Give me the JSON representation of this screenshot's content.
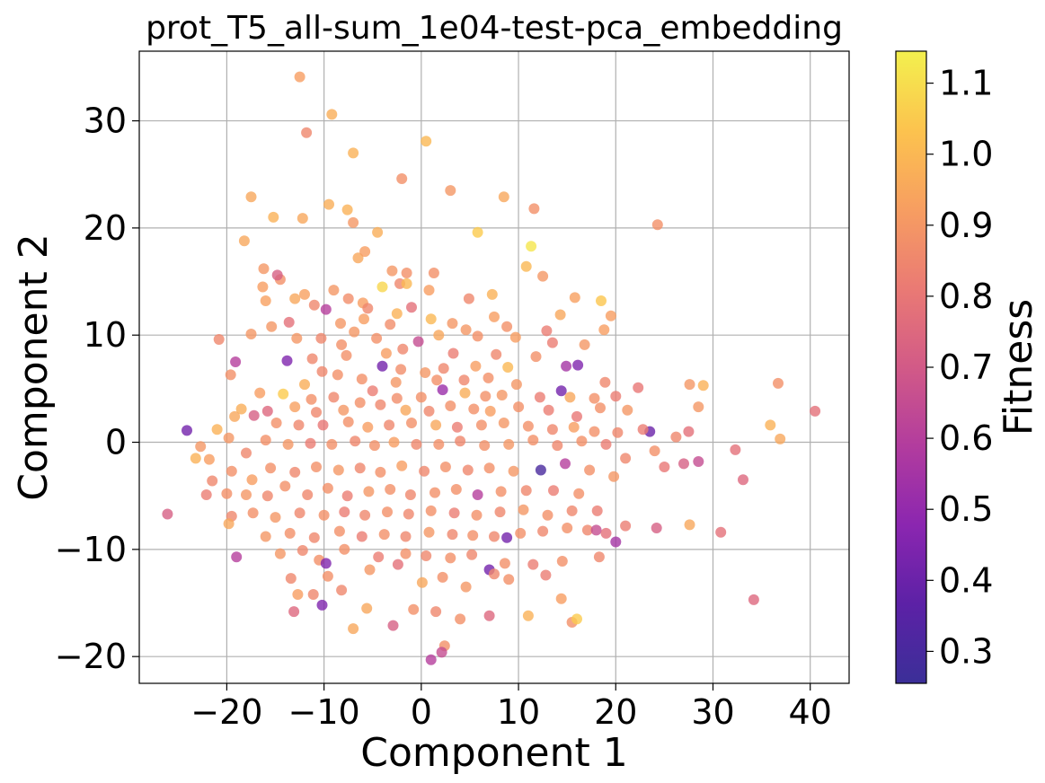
{
  "chart_data": {
    "type": "scatter",
    "title": "prot_T5_all-sum_1e04-test-pca_embedding",
    "xlabel": "Component 1",
    "ylabel": "Component 2",
    "xlim": [
      -29,
      44
    ],
    "ylim": [
      -22.5,
      36.5
    ],
    "xticks": [
      -20,
      -10,
      0,
      10,
      20,
      30,
      40
    ],
    "yticks": [
      -20,
      -10,
      0,
      10,
      20,
      30
    ],
    "xtick_labels": [
      "−20",
      "−10",
      "0",
      "10",
      "20",
      "30",
      "40"
    ],
    "ytick_labels": [
      "−20",
      "−10",
      "0",
      "10",
      "20",
      "30"
    ],
    "grid": true,
    "colorbar": {
      "label": "Fitness",
      "colormap": "plasma",
      "range": [
        0.255,
        1.145
      ],
      "ticks": [
        0.3,
        0.4,
        0.5,
        0.6,
        0.7,
        0.8,
        0.9,
        1.0,
        1.1
      ],
      "tick_labels": [
        "0.3",
        "0.4",
        "0.5",
        "0.6",
        "0.7",
        "0.8",
        "0.9",
        "1.0",
        "1.1"
      ]
    },
    "points": [
      [
        -12.5,
        34.1,
        0.92
      ],
      [
        -9.2,
        30.6,
        0.97
      ],
      [
        -11.8,
        28.9,
        0.85
      ],
      [
        0.5,
        28.1,
        1.0
      ],
      [
        -7.0,
        27.0,
        0.98
      ],
      [
        -2.0,
        24.6,
        0.88
      ],
      [
        3.0,
        23.5,
        0.9
      ],
      [
        -17.5,
        22.9,
        0.95
      ],
      [
        8.5,
        22.9,
        0.95
      ],
      [
        -9.5,
        22.2,
        0.97
      ],
      [
        -7.6,
        21.7,
        0.98
      ],
      [
        11.6,
        21.8,
        0.88
      ],
      [
        -15.2,
        21.0,
        0.98
      ],
      [
        -12.2,
        20.9,
        0.95
      ],
      [
        -7.0,
        20.5,
        0.9
      ],
      [
        5.8,
        19.6,
        1.05
      ],
      [
        24.3,
        20.3,
        0.88
      ],
      [
        -18.2,
        18.8,
        0.95
      ],
      [
        -4.5,
        19.6,
        0.97
      ],
      [
        11.3,
        18.3,
        1.12
      ],
      [
        -6.5,
        17.2,
        0.95
      ],
      [
        -5.8,
        17.8,
        0.92
      ],
      [
        -16.2,
        16.2,
        0.9
      ],
      [
        -14.5,
        15.2,
        0.88
      ],
      [
        -3.0,
        16.0,
        0.9
      ],
      [
        -1.5,
        15.8,
        0.88
      ],
      [
        1.3,
        15.8,
        0.88
      ],
      [
        10.8,
        16.4,
        1.0
      ],
      [
        -14.8,
        15.6,
        0.72
      ],
      [
        12.5,
        15.5,
        0.9
      ],
      [
        -16.3,
        14.5,
        0.92
      ],
      [
        -2.2,
        14.8,
        0.85
      ],
      [
        -4.0,
        14.5,
        1.08
      ],
      [
        -1.5,
        14.8,
        1.0
      ],
      [
        -12.0,
        13.8,
        0.93
      ],
      [
        0.8,
        14.2,
        0.92
      ],
      [
        -13.0,
        13.4,
        0.95
      ],
      [
        -9.0,
        14.2,
        0.9
      ],
      [
        -16.0,
        13.2,
        0.93
      ],
      [
        7.3,
        13.8,
        0.98
      ],
      [
        -6.0,
        13.0,
        0.92
      ],
      [
        -7.5,
        13.4,
        0.87
      ],
      [
        15.8,
        13.5,
        0.93
      ],
      [
        18.5,
        13.2,
        1.04
      ],
      [
        -11.0,
        12.8,
        0.85
      ],
      [
        -5.5,
        12.5,
        0.85
      ],
      [
        -1.0,
        12.6,
        0.78
      ],
      [
        4.9,
        13.4,
        0.85
      ],
      [
        14.3,
        11.9,
        0.95
      ],
      [
        19.5,
        11.8,
        0.92
      ],
      [
        -9.8,
        12.4,
        0.6
      ],
      [
        -2.5,
        12.0,
        0.98
      ],
      [
        1.0,
        11.5,
        1.0
      ],
      [
        3.2,
        11.1,
        0.9
      ],
      [
        7.5,
        11.7,
        0.92
      ],
      [
        -15.4,
        10.8,
        0.9
      ],
      [
        -13.6,
        11.2,
        0.78
      ],
      [
        -8.3,
        11.1,
        0.9
      ],
      [
        -6.9,
        10.3,
        0.9
      ],
      [
        -5.9,
        11.5,
        0.92
      ],
      [
        -3.2,
        11.0,
        0.87
      ],
      [
        4.6,
        10.5,
        0.9
      ],
      [
        8.8,
        10.8,
        0.88
      ],
      [
        12.9,
        10.4,
        0.82
      ],
      [
        18.8,
        10.5,
        0.92
      ],
      [
        -20.8,
        9.6,
        0.85
      ],
      [
        -17.5,
        10.1,
        0.9
      ],
      [
        -12.8,
        9.7,
        0.9
      ],
      [
        -10.3,
        9.7,
        0.85
      ],
      [
        -8.2,
        9.1,
        0.88
      ],
      [
        -4.6,
        9.7,
        0.88
      ],
      [
        -0.3,
        9.4,
        0.65
      ],
      [
        1.8,
        10.0,
        0.95
      ],
      [
        5.8,
        9.9,
        0.88
      ],
      [
        9.7,
        9.8,
        0.92
      ],
      [
        13.5,
        9.3,
        0.82
      ],
      [
        16.8,
        9.1,
        0.9
      ],
      [
        -19.1,
        7.5,
        0.6
      ],
      [
        -13.8,
        7.6,
        0.45
      ],
      [
        -11.2,
        7.8,
        0.85
      ],
      [
        -7.7,
        8.1,
        0.88
      ],
      [
        -3.6,
        8.3,
        0.92
      ],
      [
        -1.9,
        8.7,
        0.85
      ],
      [
        3.3,
        8.3,
        0.82
      ],
      [
        7.7,
        8.2,
        0.85
      ],
      [
        11.8,
        8.0,
        0.88
      ],
      [
        14.9,
        7.1,
        0.55
      ],
      [
        16.1,
        7.2,
        0.45
      ],
      [
        -10.2,
        6.6,
        0.85
      ],
      [
        -8.6,
        6.3,
        0.88
      ],
      [
        -4.0,
        7.1,
        0.42
      ],
      [
        -2.1,
        6.8,
        0.87
      ],
      [
        0.4,
        6.5,
        0.9
      ],
      [
        2.3,
        6.9,
        0.85
      ],
      [
        5.6,
        7.1,
        0.92
      ],
      [
        8.9,
        7.0,
        1.0
      ],
      [
        -19.6,
        6.3,
        0.88
      ],
      [
        -12.0,
        5.4,
        0.97
      ],
      [
        -6.1,
        5.9,
        0.88
      ],
      [
        -2.6,
        5.6,
        0.9
      ],
      [
        1.6,
        5.8,
        0.88
      ],
      [
        4.4,
        5.8,
        0.85
      ],
      [
        6.9,
        6.0,
        0.88
      ],
      [
        9.8,
        5.4,
        0.9
      ],
      [
        14.4,
        4.8,
        0.42
      ],
      [
        18.9,
        5.6,
        0.85
      ],
      [
        22.3,
        5.1,
        0.8
      ],
      [
        27.6,
        5.4,
        0.9
      ],
      [
        29.0,
        5.3,
        0.98
      ],
      [
        36.7,
        5.5,
        0.88
      ],
      [
        -16.6,
        4.6,
        0.92
      ],
      [
        -14.2,
        4.5,
        1.05
      ],
      [
        -11.3,
        4.0,
        0.88
      ],
      [
        -9.0,
        4.2,
        0.85
      ],
      [
        -5.0,
        4.8,
        0.82
      ],
      [
        -2.5,
        4.1,
        0.87
      ],
      [
        0.0,
        4.2,
        0.88
      ],
      [
        2.2,
        4.9,
        0.52
      ],
      [
        4.5,
        4.6,
        0.97
      ],
      [
        6.6,
        4.3,
        0.88
      ],
      [
        8.3,
        4.4,
        0.9
      ],
      [
        12.2,
        4.2,
        0.82
      ],
      [
        15.3,
        4.2,
        0.95
      ],
      [
        17.8,
        4.1,
        0.88
      ],
      [
        20.0,
        4.3,
        0.82
      ],
      [
        -18.5,
        3.1,
        0.97
      ],
      [
        -15.8,
        2.9,
        0.75
      ],
      [
        -13.0,
        3.3,
        0.93
      ],
      [
        -10.8,
        2.8,
        0.85
      ],
      [
        -8.0,
        3.0,
        0.9
      ],
      [
        -6.3,
        3.7,
        0.88
      ],
      [
        -4.2,
        3.5,
        0.85
      ],
      [
        -1.6,
        3.0,
        0.95
      ],
      [
        0.8,
        2.9,
        0.85
      ],
      [
        3.0,
        3.4,
        0.88
      ],
      [
        5.4,
        3.1,
        0.88
      ],
      [
        7.1,
        2.9,
        0.92
      ],
      [
        10.0,
        3.3,
        0.88
      ],
      [
        13.1,
        3.0,
        0.82
      ],
      [
        16.0,
        2.4,
        0.8
      ],
      [
        18.4,
        3.2,
        0.88
      ],
      [
        21.2,
        3.0,
        0.9
      ],
      [
        23.5,
        1.0,
        0.4
      ],
      [
        26.2,
        0.5,
        0.85
      ],
      [
        28.5,
        3.3,
        0.9
      ],
      [
        40.5,
        2.9,
        0.78
      ],
      [
        -24.1,
        1.1,
        0.42
      ],
      [
        -22.7,
        -0.4,
        0.9
      ],
      [
        -21.0,
        1.2,
        0.98
      ],
      [
        -19.2,
        2.4,
        0.95
      ],
      [
        -17.2,
        2.5,
        0.72
      ],
      [
        -14.9,
        1.8,
        0.88
      ],
      [
        -12.6,
        1.6,
        0.85
      ],
      [
        -10.1,
        1.6,
        0.8
      ],
      [
        -7.5,
        1.9,
        0.88
      ],
      [
        -5.5,
        1.4,
        0.92
      ],
      [
        -3.3,
        1.6,
        0.85
      ],
      [
        -1.0,
        1.8,
        0.88
      ],
      [
        1.5,
        1.6,
        0.95
      ],
      [
        3.7,
        1.4,
        0.82
      ],
      [
        6.2,
        1.6,
        0.88
      ],
      [
        8.5,
        1.8,
        0.9
      ],
      [
        11.0,
        1.5,
        0.88
      ],
      [
        13.5,
        1.2,
        0.85
      ],
      [
        15.7,
        1.4,
        0.92
      ],
      [
        17.8,
        1.0,
        0.88
      ],
      [
        20.2,
        0.9,
        0.85
      ],
      [
        22.8,
        1.2,
        0.82
      ],
      [
        27.5,
        1.0,
        0.78
      ],
      [
        35.9,
        1.6,
        0.98
      ],
      [
        36.9,
        0.3,
        0.95
      ],
      [
        -23.2,
        -1.5,
        0.98
      ],
      [
        -21.8,
        -1.6,
        0.92
      ],
      [
        -19.8,
        0.4,
        0.9
      ],
      [
        -18.0,
        -1.0,
        0.85
      ],
      [
        -16.0,
        0.2,
        0.88
      ],
      [
        -13.7,
        -0.2,
        0.9
      ],
      [
        -11.4,
        -0.1,
        0.82
      ],
      [
        -9.2,
        -0.2,
        0.88
      ],
      [
        -6.8,
        0.1,
        0.85
      ],
      [
        -4.8,
        -0.3,
        0.88
      ],
      [
        -2.8,
        0.0,
        0.92
      ],
      [
        -0.5,
        -0.2,
        0.85
      ],
      [
        1.8,
        -0.2,
        0.88
      ],
      [
        4.0,
        0.1,
        0.85
      ],
      [
        6.5,
        -0.3,
        0.88
      ],
      [
        9.0,
        -0.2,
        0.9
      ],
      [
        11.5,
        0.2,
        0.88
      ],
      [
        14.0,
        -0.3,
        0.85
      ],
      [
        16.5,
        0.1,
        0.88
      ],
      [
        19.0,
        -0.2,
        0.82
      ],
      [
        21.0,
        -1.5,
        0.85
      ],
      [
        24.0,
        -0.8,
        0.88
      ],
      [
        25.0,
        -2.3,
        0.8
      ],
      [
        27.0,
        -2.0,
        0.72
      ],
      [
        28.5,
        -1.8,
        0.65
      ],
      [
        32.3,
        -0.7,
        0.78
      ],
      [
        -21.5,
        -3.6,
        0.85
      ],
      [
        -19.5,
        -2.7,
        0.88
      ],
      [
        -17.4,
        -3.5,
        0.92
      ],
      [
        -15.5,
        -2.4,
        0.88
      ],
      [
        -13.0,
        -2.8,
        0.85
      ],
      [
        -10.8,
        -2.3,
        0.88
      ],
      [
        -8.5,
        -2.6,
        0.9
      ],
      [
        -6.3,
        -2.4,
        0.85
      ],
      [
        -4.2,
        -2.8,
        0.88
      ],
      [
        -2.0,
        -2.2,
        0.92
      ],
      [
        0.3,
        -2.7,
        0.85
      ],
      [
        2.5,
        -2.3,
        0.88
      ],
      [
        4.8,
        -2.6,
        0.85
      ],
      [
        7.0,
        -2.4,
        0.88
      ],
      [
        9.5,
        -2.7,
        0.9
      ],
      [
        12.3,
        -2.6,
        0.3
      ],
      [
        14.8,
        -2.0,
        0.6
      ],
      [
        17.3,
        -2.6,
        0.88
      ],
      [
        19.8,
        -3.2,
        0.9
      ],
      [
        33.1,
        -3.5,
        0.75
      ],
      [
        -20.0,
        -4.8,
        0.88
      ],
      [
        -18.0,
        -4.9,
        0.9
      ],
      [
        -15.8,
        -5.0,
        0.85
      ],
      [
        -14.0,
        -4.1,
        0.88
      ],
      [
        -11.7,
        -4.9,
        0.85
      ],
      [
        -9.6,
        -4.3,
        0.88
      ],
      [
        -7.6,
        -5.0,
        0.82
      ],
      [
        -5.4,
        -4.6,
        0.9
      ],
      [
        -3.2,
        -4.4,
        0.88
      ],
      [
        -1.1,
        -4.9,
        0.85
      ],
      [
        1.4,
        -4.7,
        0.88
      ],
      [
        3.6,
        -4.4,
        0.88
      ],
      [
        5.8,
        -4.9,
        0.6
      ],
      [
        8.2,
        -4.6,
        0.88
      ],
      [
        10.8,
        -4.5,
        0.85
      ],
      [
        13.6,
        -4.5,
        0.82
      ],
      [
        16.2,
        -4.8,
        0.88
      ],
      [
        -22.1,
        -4.9,
        0.82
      ],
      [
        -19.5,
        -6.9,
        0.85
      ],
      [
        -17.3,
        -6.6,
        0.88
      ],
      [
        -15.0,
        -7.0,
        0.9
      ],
      [
        -12.5,
        -6.6,
        0.85
      ],
      [
        -10.0,
        -6.8,
        0.88
      ],
      [
        -7.9,
        -6.5,
        0.82
      ],
      [
        -5.8,
        -6.8,
        0.85
      ],
      [
        -3.5,
        -6.5,
        0.88
      ],
      [
        -1.3,
        -6.7,
        0.85
      ],
      [
        1.0,
        -6.4,
        0.88
      ],
      [
        3.4,
        -6.6,
        0.82
      ],
      [
        5.7,
        -6.8,
        0.88
      ],
      [
        8.1,
        -6.5,
        0.85
      ],
      [
        10.5,
        -6.3,
        0.9
      ],
      [
        13.0,
        -6.8,
        0.88
      ],
      [
        15.5,
        -6.4,
        0.85
      ],
      [
        18.1,
        -6.4,
        0.82
      ],
      [
        -26.1,
        -6.7,
        0.72
      ],
      [
        -19.8,
        -7.6,
        0.95
      ],
      [
        -16.0,
        -8.8,
        0.9
      ],
      [
        -13.5,
        -8.5,
        0.88
      ],
      [
        -11.0,
        -8.9,
        0.85
      ],
      [
        -8.4,
        -8.3,
        0.88
      ],
      [
        -6.1,
        -8.8,
        0.82
      ],
      [
        -3.8,
        -8.6,
        0.88
      ],
      [
        -1.6,
        -8.8,
        0.85
      ],
      [
        0.8,
        -8.4,
        0.9
      ],
      [
        3.2,
        -8.6,
        0.85
      ],
      [
        5.3,
        -8.7,
        0.88
      ],
      [
        7.5,
        -8.8,
        0.85
      ],
      [
        8.8,
        -8.9,
        0.42
      ],
      [
        10.2,
        -8.5,
        0.88
      ],
      [
        12.5,
        -8.3,
        0.85
      ],
      [
        15.0,
        -8.0,
        0.88
      ],
      [
        17.1,
        -8.2,
        0.85
      ],
      [
        18.0,
        -8.2,
        0.65
      ],
      [
        19.0,
        -8.5,
        0.78
      ],
      [
        21.0,
        -7.8,
        0.82
      ],
      [
        24.2,
        -8.0,
        0.72
      ],
      [
        27.6,
        -7.7,
        0.95
      ],
      [
        30.8,
        -8.4,
        0.78
      ],
      [
        -19.0,
        -10.7,
        0.6
      ],
      [
        -14.5,
        -10.4,
        0.9
      ],
      [
        -12.2,
        -10.1,
        0.85
      ],
      [
        -10.5,
        -11.0,
        0.88
      ],
      [
        -9.8,
        -11.3,
        0.45
      ],
      [
        -7.9,
        -10.0,
        0.88
      ],
      [
        -4.4,
        -10.7,
        0.82
      ],
      [
        -1.6,
        -10.4,
        0.88
      ],
      [
        0.5,
        -10.6,
        0.85
      ],
      [
        3.0,
        -10.8,
        0.88
      ],
      [
        5.2,
        -10.5,
        0.85
      ],
      [
        7.0,
        -11.9,
        0.42
      ],
      [
        8.6,
        -11.3,
        0.88
      ],
      [
        11.5,
        -11.4,
        0.82
      ],
      [
        14.5,
        -11.1,
        0.88
      ],
      [
        18.3,
        -10.7,
        0.85
      ],
      [
        20.0,
        -9.3,
        0.55
      ],
      [
        -13.4,
        -12.7,
        0.85
      ],
      [
        -9.6,
        -12.5,
        0.88
      ],
      [
        -5.3,
        -11.9,
        0.9
      ],
      [
        -2.4,
        -11.4,
        0.78
      ],
      [
        0.1,
        -13.1,
        0.95
      ],
      [
        2.2,
        -12.6,
        0.88
      ],
      [
        4.6,
        -13.5,
        0.9
      ],
      [
        7.5,
        -12.3,
        0.85
      ],
      [
        9.0,
        -12.8,
        0.88
      ],
      [
        12.8,
        -12.4,
        0.82
      ],
      [
        -12.7,
        -14.2,
        0.92
      ],
      [
        -11.1,
        -14.2,
        0.85
      ],
      [
        -8.2,
        -13.8,
        0.85
      ],
      [
        -0.8,
        -15.6,
        0.88
      ],
      [
        1.5,
        -15.8,
        0.85
      ],
      [
        4.0,
        -16.5,
        0.88
      ],
      [
        7.0,
        -16.2,
        0.75
      ],
      [
        11.0,
        -16.2,
        0.98
      ],
      [
        14.4,
        -14.6,
        0.92
      ],
      [
        15.5,
        -16.8,
        0.88
      ],
      [
        16.0,
        -16.5,
        1.05
      ],
      [
        34.2,
        -14.7,
        0.75
      ],
      [
        -13.1,
        -15.8,
        0.75
      ],
      [
        -10.2,
        -15.2,
        0.45
      ],
      [
        -5.6,
        -15.5,
        0.95
      ],
      [
        -7.0,
        -17.4,
        0.95
      ],
      [
        -2.9,
        -17.1,
        0.72
      ],
      [
        2.4,
        -19.0,
        0.88
      ],
      [
        2.1,
        -19.6,
        0.65
      ],
      [
        1.0,
        -20.3,
        0.6
      ]
    ]
  }
}
